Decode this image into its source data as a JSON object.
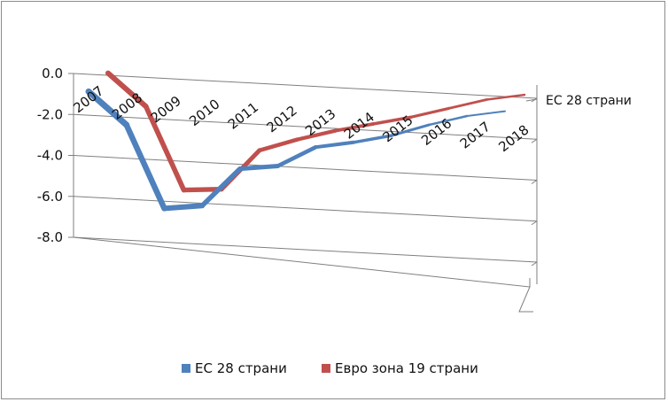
{
  "chart_data": {
    "type": "line",
    "style": "3d-line",
    "title": "",
    "xlabel": "",
    "ylabel": "",
    "categories": [
      "2007",
      "2008",
      "2009",
      "2010",
      "2011",
      "2012",
      "2013",
      "2014",
      "2015",
      "2016",
      "2017",
      "2018"
    ],
    "ylim": [
      -8.0,
      0.0
    ],
    "yticks": [
      "0.0",
      "-2.0",
      "-4.0",
      "-6.0",
      "-8.0"
    ],
    "grid": true,
    "legend_position": "bottom",
    "depth_axis_label": "ЕС 28 страни",
    "series": [
      {
        "name": "ЕС 28 страни",
        "color": "#4f81bd",
        "values": [
          -0.9,
          -2.5,
          -6.6,
          -6.4,
          -4.5,
          -4.3,
          -3.3,
          -3.0,
          -2.6,
          -2.0,
          -1.5,
          -1.2
        ]
      },
      {
        "name": "Евро зона 19 страни",
        "color": "#c0504d",
        "values": [
          -0.6,
          -2.2,
          -6.3,
          -6.2,
          -4.2,
          -3.6,
          -3.1,
          -2.7,
          -2.3,
          -1.8,
          -1.3,
          -1.0
        ]
      }
    ]
  }
}
